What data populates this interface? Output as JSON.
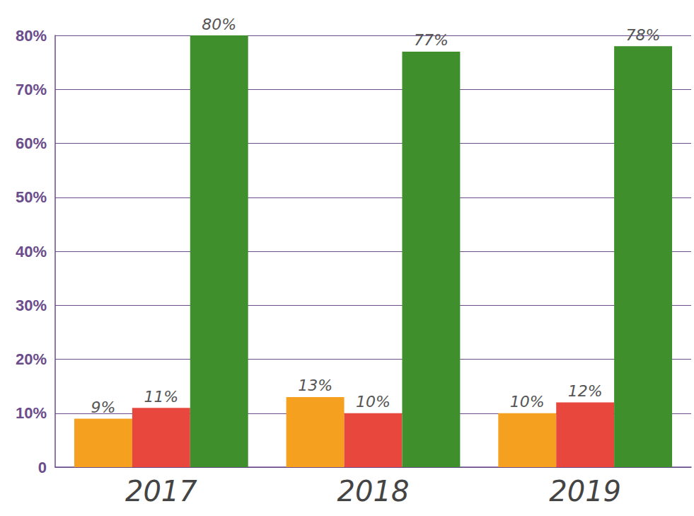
{
  "chart_data": {
    "type": "bar",
    "categories": [
      "2017",
      "2018",
      "2019"
    ],
    "series": [
      {
        "color": "#f5a11f",
        "values": [
          9,
          13,
          10
        ],
        "value_labels": [
          "9%",
          "13%",
          "10%"
        ]
      },
      {
        "color": "#e8473d",
        "values": [
          11,
          10,
          12
        ],
        "value_labels": [
          "11%",
          "10%",
          "12%"
        ]
      },
      {
        "color": "#3f8f2c",
        "values": [
          80,
          77,
          78
        ],
        "value_labels": [
          "80%",
          "77%",
          "78%"
        ]
      }
    ],
    "ylim": [
      0,
      80
    ],
    "yticks": [
      0,
      {
        "value": 10,
        "label": "10%"
      },
      {
        "value": 20,
        "label": "20%"
      },
      {
        "value": 30,
        "label": "30%"
      },
      {
        "value": 40,
        "label": "40%"
      },
      {
        "value": 50,
        "label": "50%"
      },
      {
        "value": 60,
        "label": "60%"
      },
      {
        "value": 70,
        "label": "70%"
      },
      {
        "value": 80,
        "label": "80%"
      }
    ],
    "grid": true,
    "data_labels": true
  }
}
